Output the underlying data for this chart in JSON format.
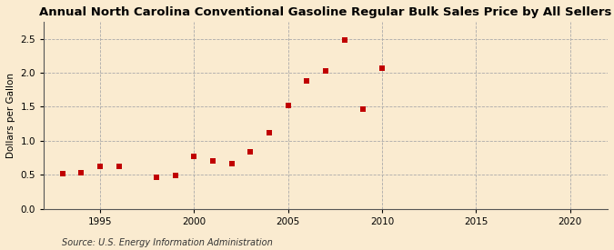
{
  "title": "Annual North Carolina Conventional Gasoline Regular Bulk Sales Price by All Sellers",
  "ylabel": "Dollars per Gallon",
  "source": "Source: U.S. Energy Information Administration",
  "years": [
    1993,
    1994,
    1995,
    1996,
    1998,
    1999,
    2000,
    2001,
    2002,
    2003,
    2004,
    2005,
    2006,
    2007,
    2008,
    2009,
    2010
  ],
  "values": [
    0.52,
    0.53,
    0.63,
    0.63,
    0.46,
    0.49,
    0.77,
    0.71,
    0.66,
    0.84,
    1.12,
    1.52,
    1.88,
    2.03,
    2.48,
    1.47,
    2.07
  ],
  "marker_color": "#c00000",
  "marker": "s",
  "marker_size": 14,
  "xlim": [
    1992,
    2022
  ],
  "ylim": [
    0.0,
    2.75
  ],
  "xticks": [
    1995,
    2000,
    2005,
    2010,
    2015,
    2020
  ],
  "yticks": [
    0.0,
    0.5,
    1.0,
    1.5,
    2.0,
    2.5
  ],
  "background_color": "#faebd0",
  "grid_color": "#aaaaaa",
  "title_fontsize": 9.5,
  "axis_label_fontsize": 7.5,
  "tick_fontsize": 7.5,
  "source_fontsize": 7.0
}
